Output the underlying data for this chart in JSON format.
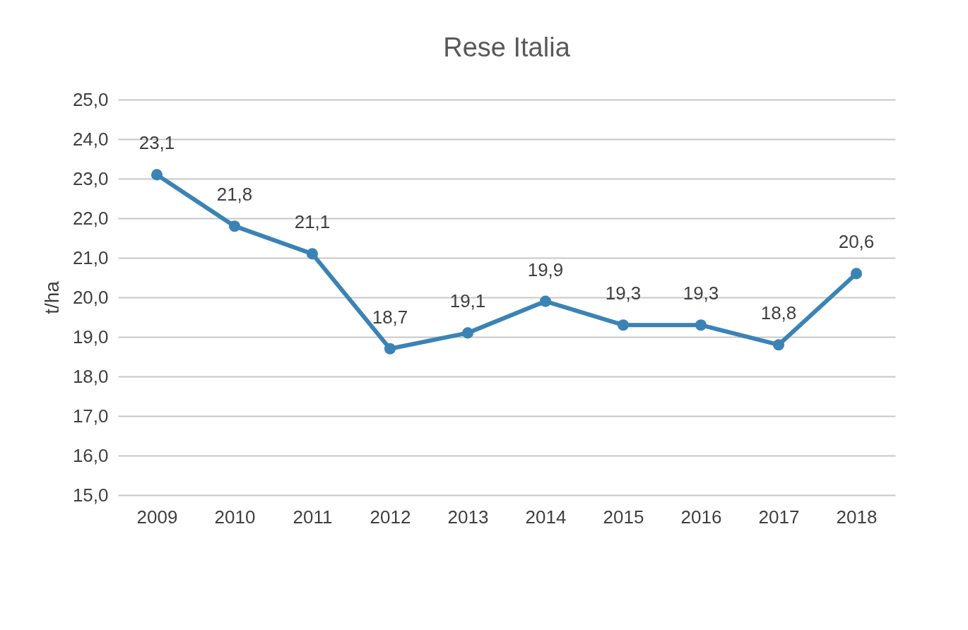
{
  "chart_data": {
    "type": "line",
    "title": "Rese Italia",
    "ylabel": "t/ha",
    "categories": [
      "2009",
      "2010",
      "2011",
      "2012",
      "2013",
      "2014",
      "2015",
      "2016",
      "2017",
      "2018"
    ],
    "series": [
      {
        "color": "#3b83b5",
        "values": [
          23.1,
          21.8,
          21.1,
          18.7,
          19.1,
          19.9,
          19.3,
          19.3,
          18.8,
          20.6
        ],
        "value_labels": [
          "23,1",
          "21,8",
          "21,1",
          "18,7",
          "19,1",
          "19,9",
          "19,3",
          "19,3",
          "18,8",
          "20,6"
        ]
      }
    ],
    "ylim": [
      15,
      25
    ],
    "yticks": [
      {
        "value": 15,
        "label": "15,0"
      },
      {
        "value": 16,
        "label": "16,0"
      },
      {
        "value": 17,
        "label": "17,0"
      },
      {
        "value": 18,
        "label": "18,0"
      },
      {
        "value": 19,
        "label": "19,0"
      },
      {
        "value": 20,
        "label": "20,0"
      },
      {
        "value": 21,
        "label": "21,0"
      },
      {
        "value": 22,
        "label": "22,0"
      },
      {
        "value": 23,
        "label": "23,0"
      },
      {
        "value": 24,
        "label": "24,0"
      },
      {
        "value": 25,
        "label": "25,0"
      }
    ],
    "grid": "y",
    "marker": "circle",
    "line_style": "solid"
  }
}
